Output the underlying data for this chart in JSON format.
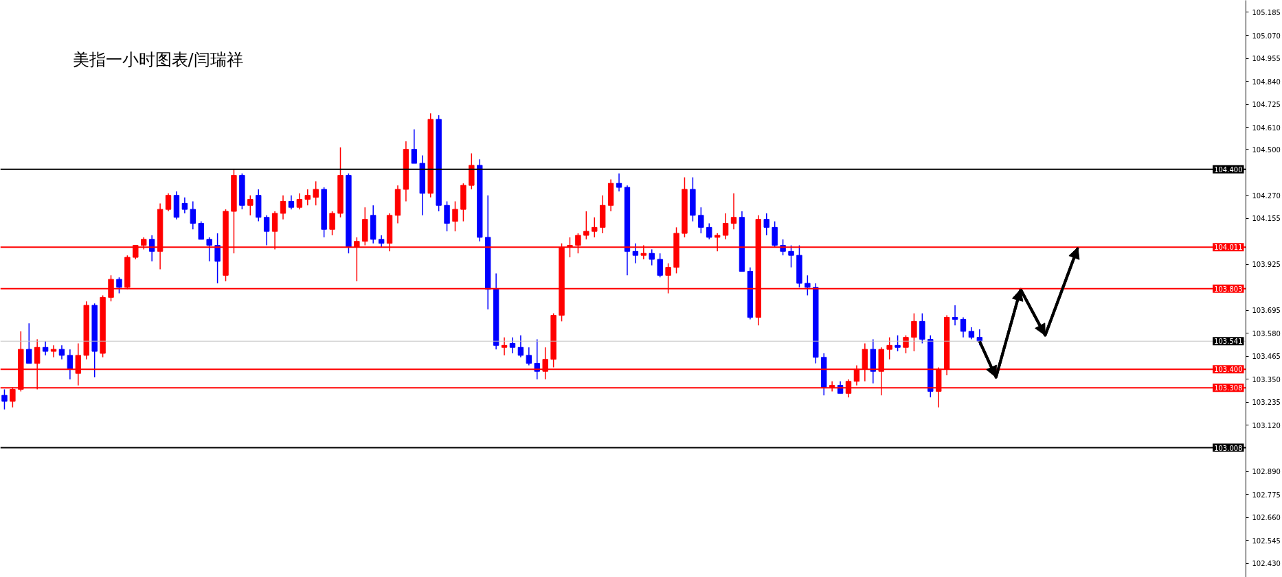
{
  "chart_data": {
    "type": "candlestick",
    "title": "美指一小时图表/闫瑞祥",
    "categories": [
      null,
      null,
      null,
      null,
      null,
      null,
      null,
      null,
      null,
      null,
      null,
      null,
      null,
      null,
      null,
      null,
      null,
      null,
      null,
      null,
      null,
      null,
      null,
      null,
      null,
      null,
      null,
      null,
      null,
      null,
      null,
      null,
      null,
      null,
      null,
      null,
      null,
      null,
      null,
      null,
      null,
      null,
      null,
      null,
      null,
      null,
      null,
      null,
      null,
      null,
      null,
      null,
      null,
      null,
      null,
      null,
      null,
      null,
      null,
      null,
      null,
      null,
      null,
      null,
      null,
      null,
      null,
      null,
      null,
      null,
      null,
      null,
      null,
      null,
      null,
      null,
      null,
      null,
      null,
      null,
      null,
      null,
      null,
      null,
      null,
      null,
      null,
      null,
      null,
      null,
      null,
      null,
      null,
      null,
      null,
      null,
      null,
      null,
      null,
      null,
      null,
      null,
      null,
      null,
      null,
      null,
      null,
      null,
      null,
      null,
      null,
      null,
      null,
      null,
      null,
      null,
      null,
      null,
      null,
      null,
      null,
      null,
      null,
      null,
      null,
      null,
      null,
      null,
      null,
      null,
      null,
      null,
      null,
      null,
      null,
      null,
      null,
      null,
      null,
      null,
      null,
      null,
      null,
      null,
      null,
      null,
      null,
      null,
      null,
      null,
      null,
      null
    ],
    "ohlc": [
      [
        103.27,
        103.3,
        103.2,
        103.24
      ],
      [
        103.24,
        103.31,
        103.21,
        103.3
      ],
      [
        103.3,
        103.59,
        103.29,
        103.5
      ],
      [
        103.5,
        103.63,
        103.43,
        103.43
      ],
      [
        103.43,
        103.55,
        103.3,
        103.51
      ],
      [
        103.51,
        103.54,
        103.47,
        103.49
      ],
      [
        103.49,
        103.52,
        103.46,
        103.5
      ],
      [
        103.5,
        103.52,
        103.45,
        103.47
      ],
      [
        103.47,
        103.5,
        103.35,
        103.4
      ],
      [
        103.38,
        103.53,
        103.32,
        103.47
      ],
      [
        103.47,
        103.74,
        103.45,
        103.72
      ],
      [
        103.72,
        103.73,
        103.36,
        103.49
      ],
      [
        103.48,
        103.77,
        103.46,
        103.76
      ],
      [
        103.76,
        103.87,
        103.74,
        103.85
      ],
      [
        103.85,
        103.86,
        103.78,
        103.81
      ],
      [
        103.81,
        103.97,
        103.8,
        103.96
      ],
      [
        103.96,
        104.02,
        103.95,
        104.02
      ],
      [
        104.02,
        104.06,
        104.0,
        104.05
      ],
      [
        104.05,
        104.07,
        103.94,
        103.99
      ],
      [
        103.99,
        104.23,
        103.9,
        104.2
      ],
      [
        104.2,
        104.28,
        104.19,
        104.27
      ],
      [
        104.27,
        104.29,
        104.15,
        104.16
      ],
      [
        104.23,
        104.26,
        104.18,
        104.2
      ],
      [
        104.2,
        104.24,
        104.1,
        104.13
      ],
      [
        104.13,
        104.14,
        104.05,
        104.05
      ],
      [
        104.05,
        104.06,
        103.94,
        104.02
      ],
      [
        104.02,
        104.08,
        103.83,
        103.94
      ],
      [
        103.87,
        104.2,
        103.84,
        104.19
      ],
      [
        104.19,
        104.4,
        103.98,
        104.37
      ],
      [
        104.37,
        104.38,
        104.2,
        104.22
      ],
      [
        104.22,
        104.27,
        104.17,
        104.25
      ],
      [
        104.27,
        104.3,
        104.14,
        104.16
      ],
      [
        104.16,
        104.17,
        104.02,
        104.09
      ],
      [
        104.09,
        104.19,
        104.0,
        104.18
      ],
      [
        104.18,
        104.27,
        104.15,
        104.24
      ],
      [
        104.24,
        104.27,
        104.2,
        104.21
      ],
      [
        104.21,
        104.28,
        104.2,
        104.25
      ],
      [
        104.25,
        104.3,
        104.22,
        104.27
      ],
      [
        104.26,
        104.34,
        104.22,
        104.3
      ],
      [
        104.3,
        104.31,
        104.06,
        104.1
      ],
      [
        104.1,
        104.19,
        104.07,
        104.18
      ],
      [
        104.18,
        104.51,
        104.16,
        104.37
      ],
      [
        104.37,
        104.38,
        103.98,
        104.01
      ],
      [
        104.01,
        104.06,
        103.84,
        104.04
      ],
      [
        104.04,
        104.21,
        104.02,
        104.15
      ],
      [
        104.17,
        104.22,
        104.03,
        104.05
      ],
      [
        104.05,
        104.07,
        104.01,
        104.03
      ],
      [
        104.03,
        104.18,
        103.99,
        104.17
      ],
      [
        104.17,
        104.32,
        104.13,
        104.3
      ],
      [
        104.3,
        104.54,
        104.24,
        104.5
      ],
      [
        104.5,
        104.6,
        104.43,
        104.43
      ],
      [
        104.43,
        104.47,
        104.17,
        104.28
      ],
      [
        104.28,
        104.68,
        104.26,
        104.65
      ],
      [
        104.65,
        104.67,
        104.19,
        104.22
      ],
      [
        104.22,
        104.24,
        104.09,
        104.13
      ],
      [
        104.14,
        104.24,
        104.09,
        104.2
      ],
      [
        104.2,
        104.33,
        104.14,
        104.32
      ],
      [
        104.32,
        104.48,
        104.3,
        104.42
      ],
      [
        104.42,
        104.45,
        104.04,
        104.06
      ],
      [
        104.06,
        104.27,
        103.7,
        103.8
      ],
      [
        103.8,
        103.88,
        103.5,
        103.52
      ],
      [
        103.51,
        103.56,
        103.47,
        103.52
      ],
      [
        103.53,
        103.56,
        103.48,
        103.51
      ],
      [
        103.51,
        103.57,
        103.46,
        103.47
      ],
      [
        103.47,
        103.51,
        103.42,
        103.43
      ],
      [
        103.43,
        103.55,
        103.35,
        103.39
      ],
      [
        103.39,
        103.51,
        103.35,
        103.45
      ],
      [
        103.45,
        103.68,
        103.41,
        103.67
      ],
      [
        103.67,
        104.03,
        103.64,
        104.01
      ],
      [
        104.01,
        104.06,
        103.96,
        104.02
      ],
      [
        104.02,
        104.08,
        103.98,
        104.07
      ],
      [
        104.07,
        104.19,
        104.05,
        104.09
      ],
      [
        104.09,
        104.16,
        104.06,
        104.11
      ],
      [
        104.11,
        104.27,
        104.08,
        104.22
      ],
      [
        104.22,
        104.35,
        104.19,
        104.33
      ],
      [
        104.33,
        104.38,
        104.29,
        104.31
      ],
      [
        104.31,
        104.32,
        103.87,
        103.99
      ],
      [
        103.99,
        104.03,
        103.93,
        103.97
      ],
      [
        103.97,
        104.02,
        103.95,
        103.98
      ],
      [
        103.98,
        104.0,
        103.92,
        103.95
      ],
      [
        103.95,
        103.98,
        103.86,
        103.87
      ],
      [
        103.87,
        103.93,
        103.78,
        103.91
      ],
      [
        103.91,
        104.11,
        103.88,
        104.08
      ],
      [
        104.08,
        104.36,
        104.06,
        104.3
      ],
      [
        104.3,
        104.36,
        104.14,
        104.17
      ],
      [
        104.17,
        104.21,
        104.08,
        104.11
      ],
      [
        104.11,
        104.13,
        104.05,
        104.06
      ],
      [
        104.06,
        104.08,
        103.99,
        104.07
      ],
      [
        104.07,
        104.18,
        104.05,
        104.13
      ],
      [
        104.13,
        104.28,
        104.1,
        104.16
      ],
      [
        104.16,
        104.19,
        103.89,
        103.89
      ],
      [
        103.89,
        103.91,
        103.65,
        103.66
      ],
      [
        103.66,
        104.17,
        103.62,
        104.15
      ],
      [
        104.15,
        104.18,
        104.07,
        104.11
      ],
      [
        104.11,
        104.14,
        104.01,
        104.02
      ],
      [
        104.02,
        104.05,
        103.97,
        103.99
      ],
      [
        103.99,
        104.02,
        103.91,
        103.97
      ],
      [
        103.97,
        104.02,
        103.81,
        103.83
      ],
      [
        103.83,
        103.87,
        103.77,
        103.81
      ],
      [
        103.81,
        103.83,
        103.43,
        103.46
      ],
      [
        103.46,
        103.48,
        103.27,
        103.31
      ],
      [
        103.31,
        103.34,
        103.29,
        103.32
      ],
      [
        103.32,
        103.34,
        103.28,
        103.28
      ],
      [
        103.28,
        103.35,
        103.26,
        103.34
      ],
      [
        103.34,
        103.42,
        103.32,
        103.4
      ],
      [
        103.4,
        103.53,
        103.34,
        103.5
      ],
      [
        103.5,
        103.55,
        103.33,
        103.39
      ],
      [
        103.39,
        103.51,
        103.27,
        103.5
      ],
      [
        103.5,
        103.56,
        103.45,
        103.52
      ],
      [
        103.52,
        103.57,
        103.49,
        103.51
      ],
      [
        103.51,
        103.57,
        103.48,
        103.56
      ],
      [
        103.56,
        103.68,
        103.49,
        103.64
      ],
      [
        103.64,
        103.68,
        103.53,
        103.55
      ],
      [
        103.55,
        103.57,
        103.26,
        103.29
      ],
      [
        103.29,
        103.41,
        103.21,
        103.4
      ],
      [
        103.4,
        103.67,
        103.37,
        103.66
      ],
      [
        103.66,
        103.72,
        103.62,
        103.65
      ],
      [
        103.65,
        103.66,
        103.56,
        103.59
      ],
      [
        103.59,
        103.61,
        103.55,
        103.56
      ],
      [
        103.56,
        103.6,
        103.52,
        103.54
      ],
      null,
      null,
      null,
      null,
      null,
      null,
      null,
      null,
      null,
      null,
      null,
      null,
      null,
      null,
      null,
      null,
      null,
      null,
      null,
      null,
      null,
      null,
      null,
      null,
      null,
      null,
      null,
      null,
      null,
      null,
      null,
      null
    ],
    "colors": [
      "#0000ff",
      "#ff0000",
      "#ff0000",
      "#0000ff",
      "#ff0000",
      "#0000ff",
      "#ff0000",
      "#0000ff",
      "#0000ff",
      "#ff0000",
      "#ff0000",
      "#0000ff",
      "#ff0000",
      "#ff0000",
      "#0000ff",
      "#ff0000",
      "#ff0000",
      "#ff0000",
      "#0000ff",
      "#ff0000",
      "#ff0000",
      "#0000ff",
      "#0000ff",
      "#0000ff",
      "#0000ff",
      "#0000ff",
      "#0000ff",
      "#ff0000",
      "#ff0000",
      "#0000ff",
      "#ff0000",
      "#0000ff",
      "#0000ff",
      "#ff0000",
      "#ff0000",
      "#0000ff",
      "#ff0000",
      "#ff0000",
      "#ff0000",
      "#0000ff",
      "#ff0000",
      "#ff0000",
      "#0000ff",
      "#ff0000",
      "#ff0000",
      "#0000ff",
      "#0000ff",
      "#ff0000",
      "#ff0000",
      "#ff0000",
      "#0000ff",
      "#0000ff",
      "#ff0000",
      "#0000ff",
      "#0000ff",
      "#ff0000",
      "#ff0000",
      "#ff0000",
      "#0000ff",
      "#0000ff",
      "#0000ff",
      "#ff0000",
      "#0000ff",
      "#0000ff",
      "#0000ff",
      "#0000ff",
      "#ff0000",
      "#ff0000",
      "#ff0000",
      "#ff0000",
      "#ff0000",
      "#ff0000",
      "#ff0000",
      "#ff0000",
      "#ff0000",
      "#0000ff",
      "#0000ff",
      "#0000ff",
      "#ff0000",
      "#0000ff",
      "#0000ff",
      "#ff0000",
      "#ff0000",
      "#ff0000",
      "#0000ff",
      "#0000ff",
      "#0000ff",
      "#ff0000",
      "#ff0000",
      "#ff0000",
      "#0000ff",
      "#0000ff",
      "#ff0000",
      "#0000ff",
      "#0000ff",
      "#0000ff",
      "#0000ff",
      "#0000ff",
      "#0000ff",
      "#0000ff",
      "#0000ff",
      "#ff0000",
      "#0000ff",
      "#ff0000",
      "#ff0000",
      "#ff0000",
      "#0000ff",
      "#ff0000",
      "#ff0000",
      "#0000ff",
      "#ff0000",
      "#ff0000",
      "#0000ff",
      "#0000ff",
      "#ff0000",
      "#ff0000",
      "#0000ff",
      "#0000ff",
      "#0000ff",
      "#0000ff",
      null,
      null,
      null,
      null,
      null,
      null,
      null,
      null,
      null,
      null,
      null,
      null,
      null,
      null,
      null,
      null,
      null,
      null,
      null,
      null,
      null,
      null,
      null,
      null,
      null,
      null,
      null,
      null,
      null,
      null,
      null,
      null
    ],
    "series": [
      {
        "type": "line",
        "color": "#000000",
        "values": [
          null,
          null,
          null,
          null,
          null,
          null,
          null,
          null,
          null,
          null,
          null,
          null,
          null,
          null,
          null,
          null,
          null,
          null,
          null,
          null,
          null,
          null,
          null,
          null,
          null,
          null,
          null,
          null,
          null,
          null,
          null,
          null,
          null,
          null,
          null,
          null,
          null,
          null,
          null,
          null,
          null,
          null,
          null,
          null,
          null,
          null,
          null,
          null,
          null,
          null,
          null,
          null,
          null,
          null,
          null,
          null,
          null,
          null,
          null,
          null,
          null,
          null,
          null,
          null,
          null,
          null,
          null,
          null,
          null,
          null,
          null,
          null,
          null,
          null,
          null,
          null,
          null,
          null,
          null,
          null,
          null,
          null,
          null,
          null,
          null,
          null,
          null,
          null,
          null,
          null,
          null,
          null,
          null,
          null,
          null,
          null,
          null,
          null,
          null,
          null,
          null,
          null,
          null,
          null,
          null,
          null,
          null,
          null,
          null,
          null,
          null,
          null,
          null,
          null,
          null,
          null,
          null,
          null,
          null,
          103.54,
          null,
          103.36,
          null,
          null,
          103.8,
          null,
          null,
          103.57,
          null,
          null,
          null,
          104.01,
          null,
          null,
          null,
          null,
          null,
          null,
          null,
          null,
          null,
          null,
          null,
          null,
          null,
          null,
          null,
          null,
          null,
          null,
          null,
          null
        ]
      }
    ],
    "ylim": [
      102.36,
      105.245
    ],
    "yticks": [
      105.185,
      {
        "value": 105.07,
        "label": "105.070"
      },
      104.955,
      {
        "value": 104.84,
        "label": "104.840"
      },
      104.725,
      {
        "value": 104.61,
        "label": "104.610"
      },
      {
        "value": 104.5,
        "label": "104.500"
      },
      {
        "value": 104.27,
        "label": "104.270"
      },
      104.155,
      103.925,
      103.695,
      {
        "value": 103.58,
        "label": "103.580"
      },
      103.465,
      {
        "value": 103.35,
        "label": "103.350"
      },
      103.235,
      {
        "value": 103.12,
        "label": "103.120"
      },
      {
        "value": 102.89,
        "label": "102.890"
      },
      102.775,
      {
        "value": 102.66,
        "label": "102.660"
      },
      102.545,
      {
        "value": 102.43,
        "label": "102.430"
      }
    ],
    "ref_lines": [
      {
        "axis": "y",
        "value": 104.4,
        "label": "104.400",
        "color": "#000000"
      },
      {
        "axis": "y",
        "value": 104.011,
        "label": "104.011",
        "color": "#ff0000"
      },
      {
        "axis": "y",
        "value": 103.803,
        "label": "103.803",
        "color": "#ff0000"
      },
      {
        "axis": "y",
        "value": 103.541,
        "label": "103.541",
        "color": "#c0c0c0"
      },
      {
        "axis": "y",
        "value": 103.4,
        "label": "103.400",
        "color": "#ff0000"
      },
      {
        "axis": "y",
        "value": 103.308,
        "label": "103.308",
        "color": "#ff0000"
      },
      {
        "axis": "y",
        "value": 103.008,
        "label": "103.008",
        "color": "#000000"
      }
    ],
    "tick_labels": "y",
    "grid": false,
    "marker": "none",
    "line_style": "solid"
  }
}
